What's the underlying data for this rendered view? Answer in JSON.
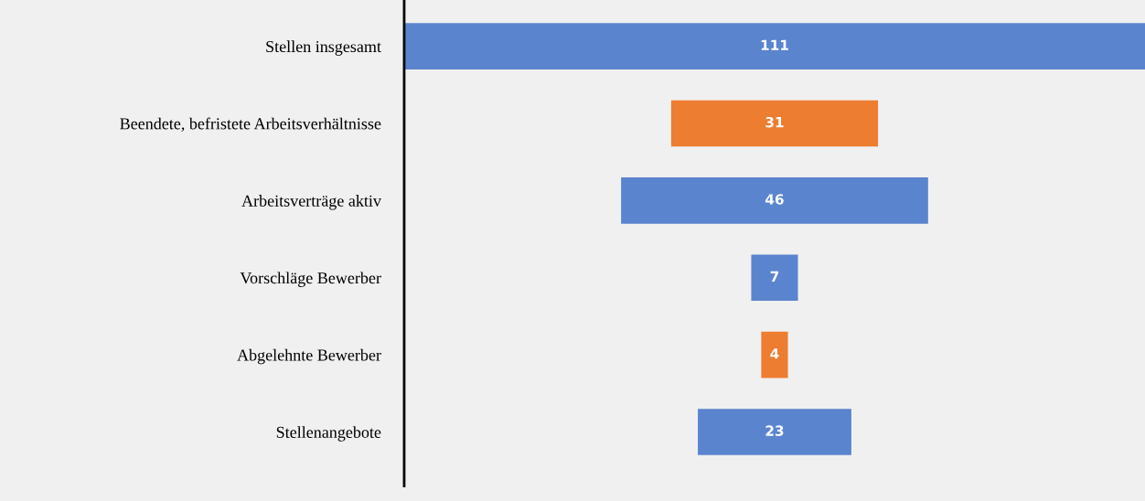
{
  "chart_data": {
    "type": "other",
    "categories": [
      "Stellen insgesamt",
      "Beendete, befristete Arbeitsverhältnisse",
      "Arbeitsverträge aktiv",
      "Vorschläge Bewerber",
      "Abgelehnte Bewerber",
      "Stellenangebote"
    ],
    "values": [
      111,
      31,
      46,
      7,
      4,
      23
    ],
    "colors": [
      "#5b84cf",
      "#ed7d31",
      "#5b84cf",
      "#5b84cf",
      "#ed7d31",
      "#5b84cf"
    ],
    "data_labels": true
  }
}
